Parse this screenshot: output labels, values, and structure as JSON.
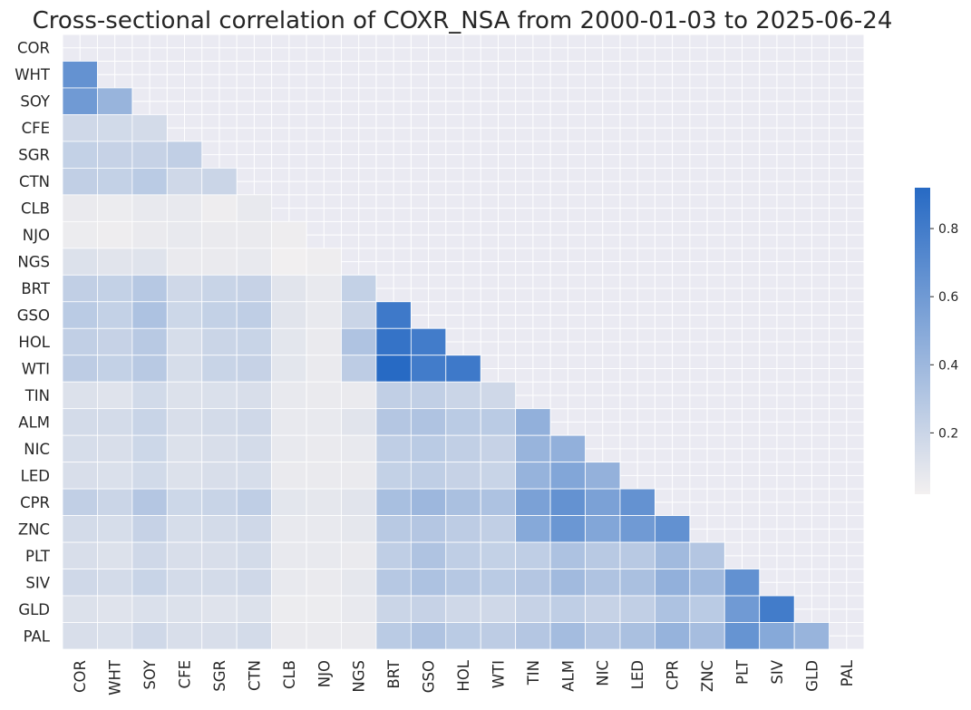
{
  "chart_data": {
    "type": "heatmap",
    "title": "Cross-sectional correlation of COXR_NSA from 2000-01-03 to 2025-06-24",
    "labels": [
      "COR",
      "WHT",
      "SOY",
      "CFE",
      "SGR",
      "CTN",
      "CLB",
      "NJO",
      "NGS",
      "BRT",
      "GSO",
      "HOL",
      "WTI",
      "TIN",
      "ALM",
      "NIC",
      "LED",
      "CPR",
      "ZNC",
      "PLT",
      "SIV",
      "GLD",
      "PAL"
    ],
    "mask": "upper triangle including diagonal (blank)",
    "matrix": [
      [],
      [
        0.65
      ],
      [
        0.6,
        0.42
      ],
      [
        0.18,
        0.17,
        0.16
      ],
      [
        0.23,
        0.22,
        0.22,
        0.24
      ],
      [
        0.24,
        0.23,
        0.27,
        0.18,
        0.2
      ],
      [
        0.06,
        0.05,
        0.07,
        0.07,
        0.04,
        0.07
      ],
      [
        0.05,
        0.04,
        0.06,
        0.07,
        0.06,
        0.06,
        0.04
      ],
      [
        0.12,
        0.1,
        0.11,
        0.06,
        0.06,
        0.07,
        0.03,
        0.04
      ],
      [
        0.24,
        0.23,
        0.29,
        0.18,
        0.21,
        0.22,
        0.1,
        0.07,
        0.23
      ],
      [
        0.27,
        0.23,
        0.33,
        0.19,
        0.23,
        0.25,
        0.1,
        0.07,
        0.2,
        0.82
      ],
      [
        0.24,
        0.22,
        0.28,
        0.15,
        0.2,
        0.21,
        0.09,
        0.06,
        0.32,
        0.86,
        0.8
      ],
      [
        0.26,
        0.23,
        0.28,
        0.15,
        0.21,
        0.22,
        0.09,
        0.06,
        0.26,
        0.92,
        0.8,
        0.82
      ],
      [
        0.12,
        0.11,
        0.17,
        0.12,
        0.13,
        0.14,
        0.07,
        0.06,
        0.06,
        0.24,
        0.24,
        0.2,
        0.18
      ],
      [
        0.16,
        0.16,
        0.21,
        0.14,
        0.16,
        0.18,
        0.07,
        0.07,
        0.1,
        0.3,
        0.32,
        0.27,
        0.27,
        0.45
      ],
      [
        0.15,
        0.14,
        0.19,
        0.12,
        0.14,
        0.16,
        0.07,
        0.06,
        0.07,
        0.25,
        0.27,
        0.24,
        0.22,
        0.42,
        0.45
      ],
      [
        0.14,
        0.13,
        0.17,
        0.12,
        0.14,
        0.15,
        0.06,
        0.06,
        0.06,
        0.23,
        0.25,
        0.22,
        0.21,
        0.43,
        0.52,
        0.44
      ],
      [
        0.24,
        0.2,
        0.3,
        0.19,
        0.21,
        0.25,
        0.09,
        0.08,
        0.1,
        0.35,
        0.4,
        0.34,
        0.33,
        0.55,
        0.65,
        0.55,
        0.65
      ],
      [
        0.16,
        0.15,
        0.22,
        0.15,
        0.16,
        0.18,
        0.07,
        0.07,
        0.08,
        0.28,
        0.3,
        0.26,
        0.24,
        0.5,
        0.62,
        0.52,
        0.6,
        0.66
      ],
      [
        0.14,
        0.12,
        0.18,
        0.14,
        0.14,
        0.16,
        0.07,
        0.07,
        0.06,
        0.25,
        0.32,
        0.25,
        0.23,
        0.25,
        0.33,
        0.28,
        0.28,
        0.38,
        0.3
      ],
      [
        0.18,
        0.16,
        0.21,
        0.16,
        0.16,
        0.18,
        0.07,
        0.06,
        0.08,
        0.29,
        0.33,
        0.29,
        0.27,
        0.3,
        0.38,
        0.32,
        0.34,
        0.45,
        0.38,
        0.66
      ],
      [
        0.12,
        0.11,
        0.13,
        0.12,
        0.11,
        0.12,
        0.05,
        0.05,
        0.07,
        0.2,
        0.22,
        0.18,
        0.18,
        0.22,
        0.25,
        0.22,
        0.24,
        0.33,
        0.27,
        0.6,
        0.8
      ],
      [
        0.14,
        0.13,
        0.18,
        0.14,
        0.14,
        0.16,
        0.06,
        0.06,
        0.06,
        0.27,
        0.32,
        0.27,
        0.26,
        0.3,
        0.37,
        0.3,
        0.34,
        0.43,
        0.36,
        0.64,
        0.5,
        0.42
      ]
    ],
    "colorbar": {
      "min": 0.02,
      "max": 0.92,
      "ticks": [
        0.2,
        0.4,
        0.6,
        0.8
      ]
    },
    "grid": true
  }
}
